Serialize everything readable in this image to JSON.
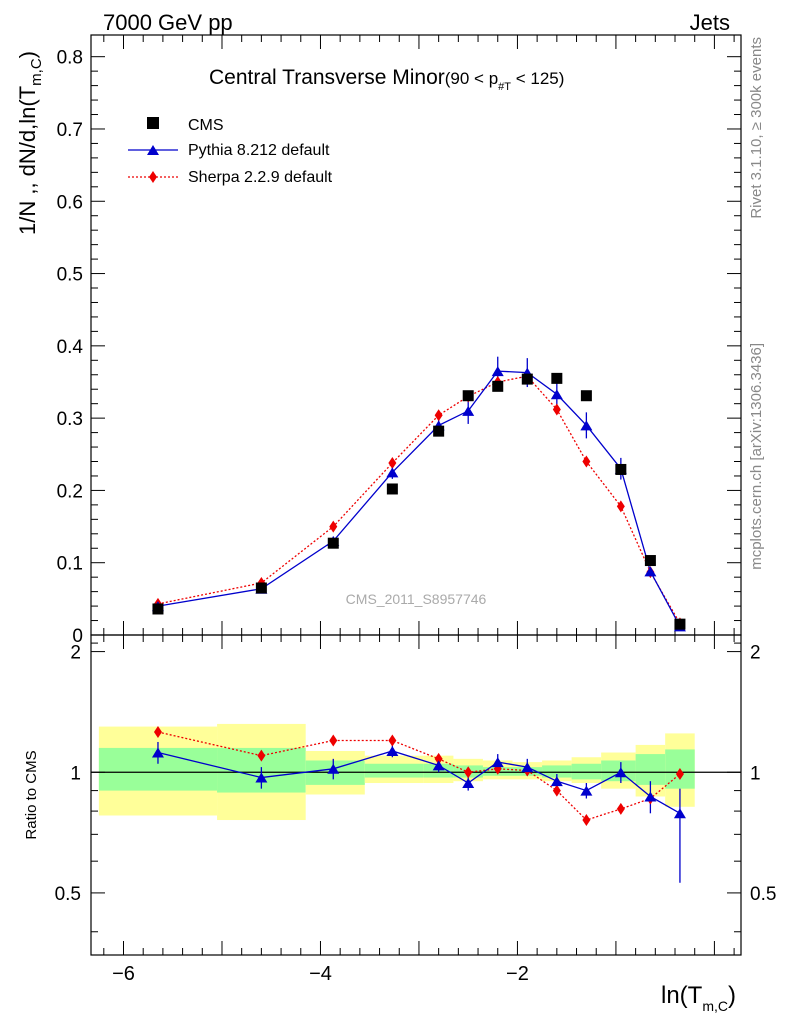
{
  "header": {
    "left": "7000 GeV pp",
    "right": "Jets"
  },
  "side_labels": {
    "rivet": "Rivet 3.1.10, ≥ 300k events",
    "mcplots": "mcplots.cern.ch [arXiv:1306.3436]"
  },
  "watermark": "CMS_2011_S8957746",
  "chart_data": [
    {
      "type": "line",
      "panel": "main",
      "title": "Central Transverse Minor",
      "title_cut": "(90 < p",
      "title_cut_sub": "#T",
      "title_cut_end": " < 125)",
      "ylabel": "1/N ,, dN/d,ln(T",
      "ylabel_sub": "m,C",
      "ylabel_end": ")",
      "xlim": [
        -6.33,
        0.27
      ],
      "ylim": [
        0,
        0.83
      ],
      "yticks": [
        0,
        0.1,
        0.2,
        0.3,
        0.4,
        0.5,
        0.6,
        0.7,
        0.8
      ],
      "ytick_labels": [
        "0",
        "0.1",
        "0.2",
        "0.3",
        "0.4",
        "0.5",
        "0.6",
        "0.7",
        "0.8"
      ],
      "legend_position": "top-left",
      "legend": [
        "CMS",
        "Pythia 8.212 default",
        "Sherpa 2.2.9 default"
      ],
      "series": [
        {
          "name": "CMS",
          "style": "square",
          "color": "#000000",
          "x": [
            -5.65,
            -4.6,
            -3.87,
            -3.27,
            -2.8,
            -2.5,
            -2.2,
            -1.9,
            -1.6,
            -1.3,
            -0.95,
            -0.65,
            -0.35
          ],
          "y": [
            0.036,
            0.065,
            0.127,
            0.202,
            0.282,
            0.331,
            0.344,
            0.354,
            0.355,
            0.331,
            0.229,
            0.103,
            0.015
          ]
        },
        {
          "name": "Pythia 8.212 default",
          "style": "triangle-solid",
          "color": "#0000cc",
          "x": [
            -5.65,
            -4.6,
            -3.87,
            -3.27,
            -2.8,
            -2.5,
            -2.2,
            -1.9,
            -1.6,
            -1.3,
            -0.95,
            -0.65,
            -0.35
          ],
          "y": [
            0.04,
            0.064,
            0.13,
            0.225,
            0.29,
            0.31,
            0.365,
            0.363,
            0.333,
            0.29,
            0.23,
            0.088,
            0.012
          ],
          "yerr": [
            0.003,
            0.004,
            0.006,
            0.009,
            0.01,
            0.018,
            0.02,
            0.02,
            0.015,
            0.018,
            0.015,
            0.006,
            0.004
          ]
        },
        {
          "name": "Sherpa 2.2.9 default",
          "style": "diamond-dotted",
          "color": "#ee0000",
          "x": [
            -5.65,
            -4.6,
            -3.87,
            -3.27,
            -2.8,
            -2.5,
            -2.2,
            -1.9,
            -1.6,
            -1.3,
            -0.95,
            -0.65,
            -0.35
          ],
          "y": [
            0.043,
            0.072,
            0.15,
            0.238,
            0.304,
            0.33,
            0.35,
            0.358,
            0.312,
            0.24,
            0.178,
            0.087,
            0.016
          ]
        }
      ]
    },
    {
      "type": "line",
      "panel": "ratio",
      "ylabel": "Ratio to CMS",
      "xlabel": "ln(T",
      "xlabel_sub": "m,C",
      "xlabel_end": ")",
      "xlim": [
        -6.33,
        0.27
      ],
      "ylim": [
        0.35,
        2.2
      ],
      "yscale": "log",
      "yticks": [
        0.5,
        1,
        2
      ],
      "ytick_labels": [
        "0.5",
        "1",
        "2"
      ],
      "xticks": [
        -6,
        -4,
        -2
      ],
      "xtick_labels": [
        "−6",
        "−4",
        "−2"
      ],
      "bands": [
        {
          "x0": -6.25,
          "x1": -5.05,
          "y_lo": 0.78,
          "y_hi": 1.3,
          "inner_lo": 0.9,
          "inner_hi": 1.15
        },
        {
          "x0": -5.05,
          "x1": -4.15,
          "y_lo": 0.76,
          "y_hi": 1.32,
          "inner_lo": 0.89,
          "inner_hi": 1.15
        },
        {
          "x0": -4.15,
          "x1": -3.55,
          "y_lo": 0.88,
          "y_hi": 1.13,
          "inner_lo": 0.93,
          "inner_hi": 1.07
        },
        {
          "x0": -3.55,
          "x1": -2.95,
          "y_lo": 0.94,
          "y_hi": 1.1,
          "inner_lo": 0.97,
          "inner_hi": 1.05
        },
        {
          "x0": -2.95,
          "x1": -2.65,
          "y_lo": 0.94,
          "y_hi": 1.1,
          "inner_lo": 0.97,
          "inner_hi": 1.05
        },
        {
          "x0": -2.65,
          "x1": -2.35,
          "y_lo": 0.95,
          "y_hi": 1.08,
          "inner_lo": 0.97,
          "inner_hi": 1.04
        },
        {
          "x0": -2.35,
          "x1": -2.05,
          "y_lo": 0.96,
          "y_hi": 1.07,
          "inner_lo": 0.98,
          "inner_hi": 1.03
        },
        {
          "x0": -2.05,
          "x1": -1.75,
          "y_lo": 0.96,
          "y_hi": 1.06,
          "inner_lo": 0.98,
          "inner_hi": 1.03
        },
        {
          "x0": -1.75,
          "x1": -1.45,
          "y_lo": 0.95,
          "y_hi": 1.07,
          "inner_lo": 0.97,
          "inner_hi": 1.04
        },
        {
          "x0": -1.45,
          "x1": -1.15,
          "y_lo": 0.94,
          "y_hi": 1.09,
          "inner_lo": 0.96,
          "inner_hi": 1.05
        },
        {
          "x0": -1.15,
          "x1": -0.8,
          "y_lo": 0.91,
          "y_hi": 1.12,
          "inner_lo": 0.95,
          "inner_hi": 1.07
        },
        {
          "x0": -0.8,
          "x1": -0.5,
          "y_lo": 0.87,
          "y_hi": 1.17,
          "inner_lo": 0.93,
          "inner_hi": 1.11
        },
        {
          "x0": -0.5,
          "x1": -0.2,
          "y_lo": 0.82,
          "y_hi": 1.25,
          "inner_lo": 0.91,
          "inner_hi": 1.14
        }
      ],
      "series": [
        {
          "name": "Pythia 8.212 default",
          "color": "#0000cc",
          "x": [
            -5.65,
            -4.6,
            -3.87,
            -3.27,
            -2.8,
            -2.5,
            -2.2,
            -1.9,
            -1.6,
            -1.3,
            -0.95,
            -0.65,
            -0.35
          ],
          "y": [
            1.12,
            0.97,
            1.02,
            1.13,
            1.04,
            0.94,
            1.06,
            1.03,
            0.95,
            0.9,
            1.0,
            0.87,
            0.79
          ],
          "yerr_lo": [
            0.07,
            0.06,
            0.06,
            0.04,
            0.04,
            0.04,
            0.05,
            0.05,
            0.04,
            0.04,
            0.06,
            0.08,
            0.26
          ],
          "yerr_hi": [
            0.07,
            0.06,
            0.06,
            0.04,
            0.04,
            0.04,
            0.05,
            0.05,
            0.04,
            0.04,
            0.06,
            0.08,
            0.12
          ]
        },
        {
          "name": "Sherpa 2.2.9 default",
          "color": "#ee0000",
          "x": [
            -5.65,
            -4.6,
            -3.87,
            -3.27,
            -2.8,
            -2.5,
            -2.2,
            -1.9,
            -1.6,
            -1.3,
            -0.95,
            -0.65,
            -0.35
          ],
          "y": [
            1.26,
            1.1,
            1.2,
            1.2,
            1.08,
            1.0,
            1.02,
            1.01,
            0.9,
            0.76,
            0.81,
            0.86,
            0.99
          ]
        }
      ]
    }
  ]
}
